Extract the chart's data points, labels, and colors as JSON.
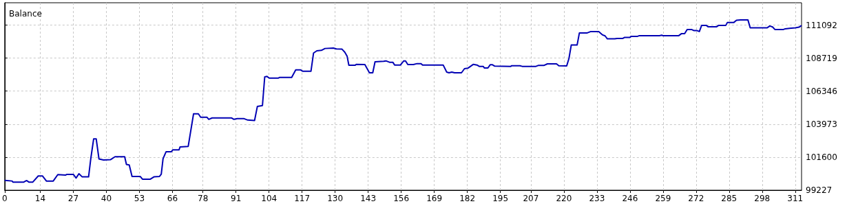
{
  "chart_data": {
    "type": "line",
    "title": "Balance",
    "x": [
      0.2,
      2.9,
      3.3,
      7.4,
      8.6,
      9.6,
      11,
      13.2,
      14.9,
      16.4,
      19.1,
      20.9,
      24.0,
      24.5,
      27,
      28.1,
      29.2,
      30.5,
      33.0,
      33.9,
      35.0,
      36.0,
      37.1,
      38.9,
      41.6,
      43.4,
      47.2,
      47.9,
      49.0,
      50.1,
      53.3,
      54.2,
      57.3,
      58.7,
      60.9,
      61.6,
      62.3,
      63.5,
      65.6,
      66.1,
      68.6,
      69.0,
      72.2,
      74.3,
      76.2,
      77.1,
      79.6,
      80.3,
      81.6,
      89.3,
      90.2,
      91.5,
      94.2,
      95.6,
      98.3,
      99.4,
      101.4,
      102.3,
      103.2,
      104.1,
      107.7,
      108.2,
      112.9,
      114.5,
      116.3,
      117.2,
      120.5,
      121.5,
      122.8,
      124.6,
      126,
      129.3,
      130.5,
      132.7,
      133.8,
      134.7,
      135.4,
      137.9,
      138.3,
      141.7,
      143.5,
      144.8,
      145.7,
      149.1,
      150.0,
      151.4,
      152.7,
      153.4,
      155.7,
      157.0,
      157.7,
      158.6,
      160.8,
      162.2,
      163.8,
      164.4,
      172.5,
      173.9,
      174.8,
      175.9,
      177.0,
      179.7,
      180.9,
      182.2,
      184.4,
      185.8,
      186.7,
      188.3,
      188.7,
      190.1,
      191.0,
      191.9,
      192.8,
      199.1,
      199.5,
      202.7,
      203.6,
      209,
      209.9,
      212.1,
      213.5,
      217.1,
      218,
      221.1,
      222.0,
      222.9,
      225.2,
      226.1,
      229.2,
      230.6,
      233.7,
      235.1,
      236.2,
      237.1,
      240,
      240.9,
      243.2,
      243.8,
      245.9,
      246.5,
      249,
      249.7,
      257.6,
      258.5,
      258.9,
      265.2,
      266.3,
      267.5,
      268.5,
      270.2,
      271.2,
      272.4,
      273.3,
      274.2,
      276,
      276.7,
      280.1,
      280.9,
      283.7,
      284.3,
      286.8,
      287.9,
      289.5,
      292.4,
      293.3,
      299.9,
      301.0,
      302.1,
      303.0,
      306.4,
      307.1,
      308.8,
      311.1,
      312.5,
      313.3
    ],
    "series": [
      {
        "color": "#0000b4",
        "values": [
          99936,
          99887,
          99804,
          99804,
          99920,
          99804,
          99804,
          100249,
          100249,
          99887,
          99887,
          100348,
          100315,
          100365,
          100365,
          100101,
          100414,
          100184,
          100184,
          101535,
          102919,
          102919,
          101469,
          101403,
          101420,
          101634,
          101634,
          101074,
          101041,
          100217,
          100217,
          100019,
          100019,
          100184,
          100217,
          100381,
          101486,
          101996,
          101996,
          102128,
          102128,
          102342,
          102375,
          104716,
          104716,
          104468,
          104468,
          104320,
          104419,
          104419,
          104320,
          104369,
          104369,
          104270,
          104238,
          105243,
          105309,
          107369,
          107402,
          107286,
          107286,
          107336,
          107336,
          107880,
          107880,
          107781,
          107781,
          109083,
          109248,
          109280,
          109412,
          109445,
          109379,
          109363,
          109149,
          108868,
          108209,
          108209,
          108275,
          108259,
          107665,
          107665,
          108457,
          108490,
          108522,
          108424,
          108424,
          108226,
          108226,
          108522,
          108522,
          108259,
          108259,
          108325,
          108325,
          108226,
          108226,
          107715,
          107665,
          107715,
          107665,
          107665,
          107962,
          107995,
          108275,
          108226,
          108127,
          108127,
          108011,
          108011,
          108242,
          108242,
          108143,
          108127,
          108176,
          108176,
          108127,
          108127,
          108193,
          108193,
          108308,
          108308,
          108176,
          108160,
          108704,
          109659,
          109659,
          110533,
          110533,
          110632,
          110632,
          110401,
          110319,
          110104,
          110104,
          110137,
          110137,
          110203,
          110203,
          110286,
          110286,
          110335,
          110335,
          110368,
          110335,
          110335,
          110484,
          110484,
          110780,
          110780,
          110698,
          110698,
          110632,
          111077,
          111077,
          110978,
          110978,
          111077,
          111077,
          111275,
          111275,
          111439,
          111472,
          111472,
          110895,
          110895,
          111027,
          110961,
          110780,
          110780,
          110830,
          110862,
          110895,
          110945,
          111044
        ]
      }
    ],
    "xlim": [
      0,
      313.5
    ],
    "xticks": [
      0,
      14,
      27,
      40,
      53,
      66,
      78,
      91,
      104,
      117,
      130,
      143,
      156,
      169,
      182,
      195,
      207,
      220,
      233,
      246,
      259,
      272,
      285,
      298,
      311
    ],
    "ylim": [
      99227,
      112700
    ],
    "yticks": [
      99227,
      101600,
      103973,
      106346,
      108719,
      111092
    ],
    "grid": true,
    "line_style": "solid"
  }
}
